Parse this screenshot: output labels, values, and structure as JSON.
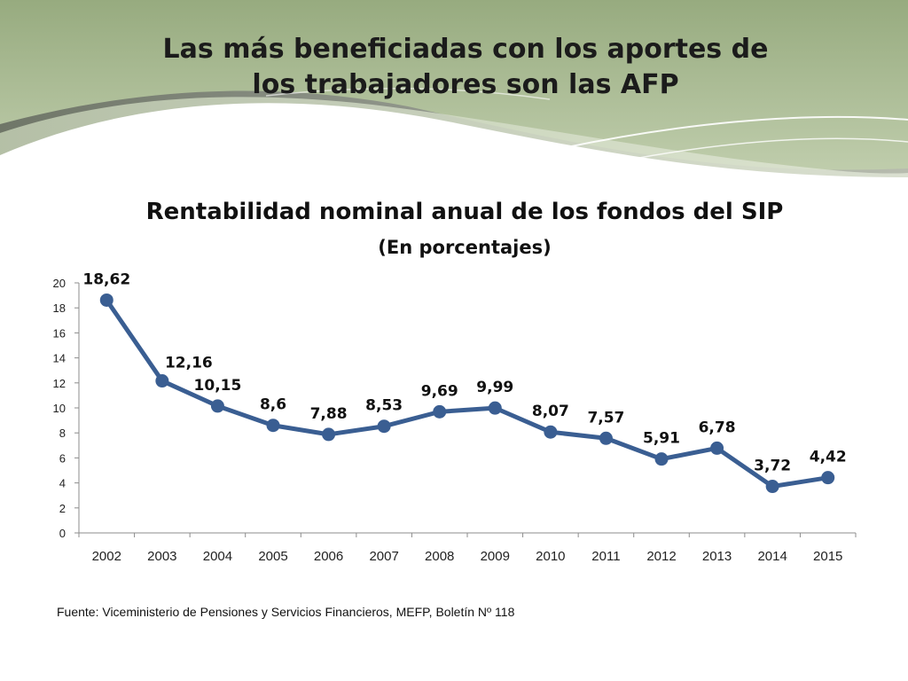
{
  "slide": {
    "title_lines": [
      "Las más beneficiadas con los aportes de",
      "los trabajadores son las AFP"
    ],
    "source": "Fuente: Viceministerio de Pensiones y Servicios Financieros, MEFP, Boletín Nº 118"
  },
  "colors": {
    "series": "#3a5e92",
    "header_green": "#a9bb93",
    "header_gray": "#8a8e86"
  },
  "chart_data": {
    "type": "line",
    "title": "Rentabilidad nominal anual de los fondos del SIP",
    "subtitle": "(En porcentajes)",
    "xlabel": "",
    "ylabel": "",
    "categories": [
      "2002",
      "2003",
      "2004",
      "2005",
      "2006",
      "2007",
      "2008",
      "2009",
      "2010",
      "2011",
      "2012",
      "2013",
      "2014",
      "2015"
    ],
    "series": [
      {
        "name": "Rentabilidad nominal anual",
        "values": [
          18.62,
          12.16,
          10.15,
          8.6,
          7.88,
          8.53,
          9.69,
          9.99,
          8.07,
          7.57,
          5.91,
          6.78,
          3.72,
          4.42
        ],
        "labels": [
          "18,62",
          "12,16",
          "10,15",
          "8,6",
          "7,88",
          "8,53",
          "9,69",
          "9,99",
          "8,07",
          "7,57",
          "5,91",
          "6,78",
          "3,72",
          "4,42"
        ]
      }
    ],
    "ylim": [
      0,
      20
    ],
    "yticks": [
      0,
      2,
      4,
      6,
      8,
      10,
      12,
      14,
      16,
      18,
      20
    ],
    "grid": false,
    "legend": "none"
  }
}
